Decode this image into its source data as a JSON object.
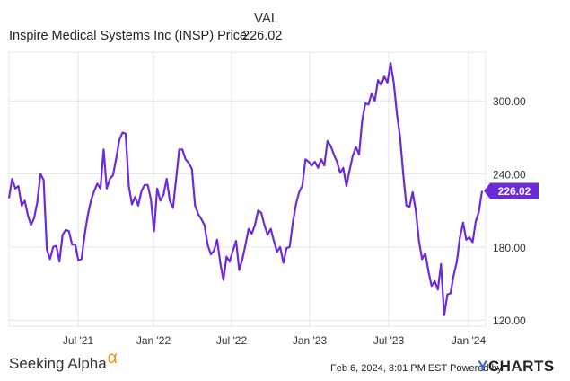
{
  "legend": {
    "header": "VAL",
    "series_name": "Inspire Medical Systems Inc (INSP) Price",
    "series_value": "226.02"
  },
  "footer": {
    "brand_left": "Seeking Alpha",
    "brand_left_mark": "α",
    "timestamp": "Feb 6, 2024, 8:01 PM EST",
    "powered_by": "Powered by",
    "brand_right_y": "Y",
    "brand_right": "CHARTS"
  },
  "colors": {
    "series": "#6c2bd9",
    "grid": "#e4e4e4",
    "axis_text": "#333333"
  },
  "chart_data": {
    "type": "line",
    "title": "",
    "xlabel": "",
    "ylabel": "",
    "x_tick_labels": [
      "Jul '21",
      "Jan '22",
      "Jul '22",
      "Jan '23",
      "Jul '23",
      "Jan '24"
    ],
    "y_tick_labels": [
      "120.00",
      "180.00",
      "240.00",
      "300.00"
    ],
    "y_ticks": [
      120,
      180,
      240,
      300
    ],
    "ylim": [
      115,
      340
    ],
    "grid": true,
    "last_value_label": "226.02",
    "series": [
      {
        "name": "Inspire Medical Systems Inc (INSP) Price",
        "values": [
          220,
          236,
          228,
          230,
          214,
          218,
          206,
          198,
          204,
          217,
          240,
          235,
          178,
          170,
          180,
          181,
          168,
          190,
          194,
          193,
          182,
          182,
          169,
          170,
          190,
          206,
          218,
          226,
          232,
          228,
          260,
          228,
          236,
          239,
          253,
          268,
          274,
          273,
          230,
          215,
          221,
          214,
          226,
          231,
          231,
          219,
          193,
          228,
          218,
          223,
          236,
          218,
          212,
          236,
          260,
          260,
          252,
          249,
          244,
          214,
          207,
          203,
          198,
          182,
          174,
          177,
          186,
          167,
          153,
          172,
          168,
          177,
          185,
          161,
          170,
          182,
          195,
          191,
          198,
          210,
          208,
          198,
          190,
          195,
          185,
          176,
          180,
          167,
          179,
          180,
          200,
          215,
          225,
          230,
          252,
          250,
          247,
          250,
          245,
          252,
          247,
          267,
          263,
          256,
          250,
          241,
          245,
          230,
          243,
          255,
          262,
          256,
          284,
          298,
          297,
          306,
          300,
          317,
          313,
          320,
          315,
          331,
          315,
          290,
          270,
          240,
          214,
          213,
          225,
          210,
          185,
          170,
          175,
          160,
          148,
          152,
          145,
          166,
          124,
          141,
          142,
          157,
          168,
          188,
          200,
          186,
          188,
          184,
          201,
          209,
          226.02
        ]
      }
    ]
  }
}
